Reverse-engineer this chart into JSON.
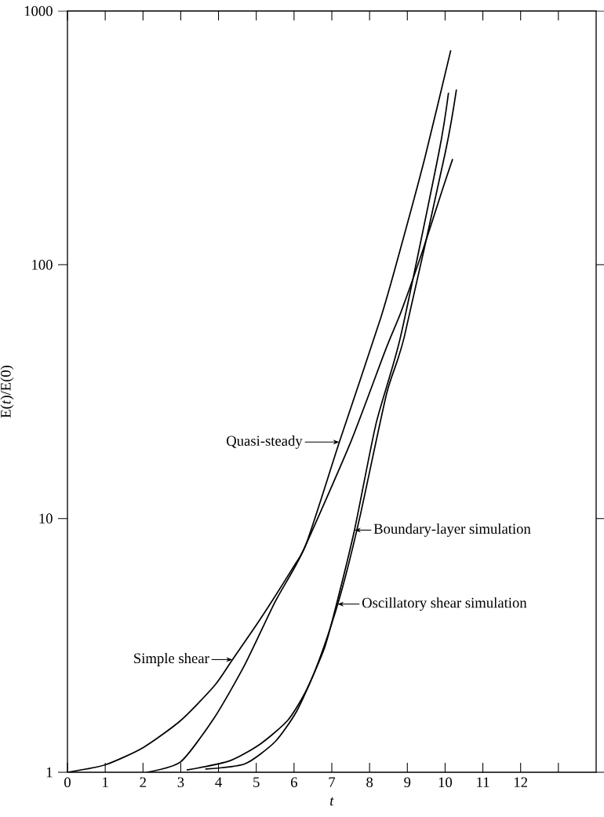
{
  "chart_data": {
    "type": "line",
    "xlabel": "*t*",
    "ylabel": "E(*t*)/E(0)",
    "xlim": [
      0,
      14
    ],
    "ylim": [
      1,
      1000
    ],
    "log": "y",
    "xticks": [
      0,
      1,
      2,
      3,
      4,
      5,
      6,
      7,
      8,
      9,
      10,
      11,
      12,
      {
        "value": 13,
        "label": null
      }
    ],
    "yticks": [
      1,
      10,
      100,
      1000
    ],
    "line_style": "solid",
    "marker": "none",
    "grid": false,
    "series": [
      {
        "color": "#000000",
        "x": [
          0,
          1,
          2,
          3,
          3.9,
          4.37,
          5.1,
          6,
          6.3,
          7.5,
          8.43,
          8.83,
          9.4,
          9.94,
          10.2
        ],
        "values": [
          1,
          1.07,
          1.25,
          1.6,
          2.2,
          2.78,
          4,
          6.5,
          7.8,
          20,
          46.5,
          65,
          113,
          200,
          261
        ]
      },
      {
        "color": "#000000",
        "x": [
          2.1,
          3,
          3.9,
          4.7,
          5.5,
          6.3,
          7.2,
          8.3,
          8.8,
          9.47,
          10.15
        ],
        "values": [
          1,
          1.1,
          1.65,
          2.66,
          4.7,
          7.8,
          20,
          62,
          113,
          266,
          700
        ]
      },
      {
        "color": "#000000",
        "x": [
          3.16,
          4.3,
          5.1,
          5.83,
          6.3,
          6.8,
          7.12,
          7.6,
          8.17,
          8.82,
          9.84,
          10.09
        ],
        "values": [
          1.02,
          1.11,
          1.29,
          1.6,
          2.07,
          3.07,
          4.57,
          9,
          23.6,
          52,
          279,
          476
        ]
      },
      {
        "color": "#000000",
        "x": [
          3.65,
          4.7,
          5.5,
          6.07,
          6.55,
          7,
          7.36,
          7.76,
          8.45,
          8.92,
          10.01,
          10.3
        ],
        "values": [
          1.03,
          1.08,
          1.32,
          1.74,
          2.5,
          3.86,
          5.9,
          10.4,
          31,
          52,
          279,
          490
        ]
      }
    ],
    "annotations": [
      {
        "text": "Simple shear",
        "x": 4.37,
        "y": 2.78
      },
      {
        "text": "Quasi-steady",
        "x": 7.2,
        "y": 20
      },
      {
        "text": "Boundary-layer simulation",
        "x": 7.6,
        "y": 9
      },
      {
        "text": "Oscillatory shear simulation",
        "x": 7.15,
        "y": 4.6
      }
    ]
  }
}
